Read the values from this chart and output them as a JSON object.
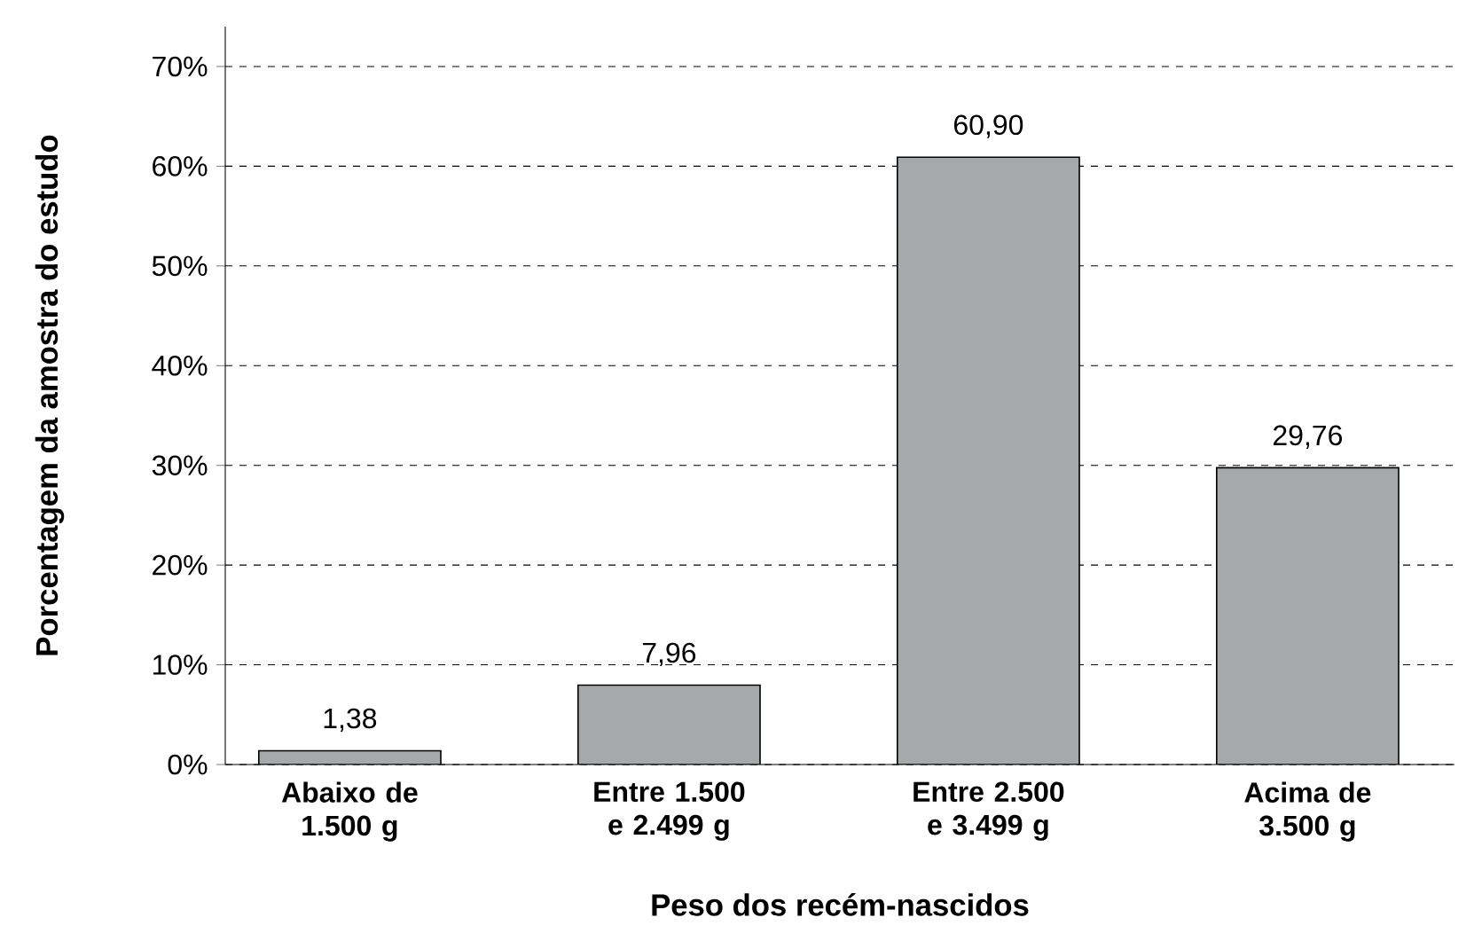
{
  "chart_data": {
    "type": "bar",
    "xlabel": "Peso dos recém-nascidos",
    "ylabel": "Porcentagem da amostra do estudo",
    "categories": [
      "Abaixo de 1.500 g",
      "Entre 1.500 e 2.499 g",
      "Entre 2.500 e 3.499 g",
      "Acima de 3.500 g"
    ],
    "values": [
      1.38,
      7.96,
      60.9,
      29.76
    ],
    "value_labels": [
      "1,38",
      "7,96",
      "60,90",
      "29,76"
    ],
    "color": "#a7a8aa",
    "ylim": [
      0,
      74
    ],
    "yticks": [
      {
        "value": 0,
        "label": "0%"
      },
      {
        "value": 10,
        "label": "10%"
      },
      {
        "value": 20,
        "label": "20%"
      },
      {
        "value": 30,
        "label": "30%"
      },
      {
        "value": 40,
        "label": "40%"
      },
      {
        "value": 50,
        "label": "50%"
      },
      {
        "value": 60,
        "label": "60%"
      },
      {
        "value": 70,
        "label": "70%"
      }
    ],
    "grid": "y"
  }
}
